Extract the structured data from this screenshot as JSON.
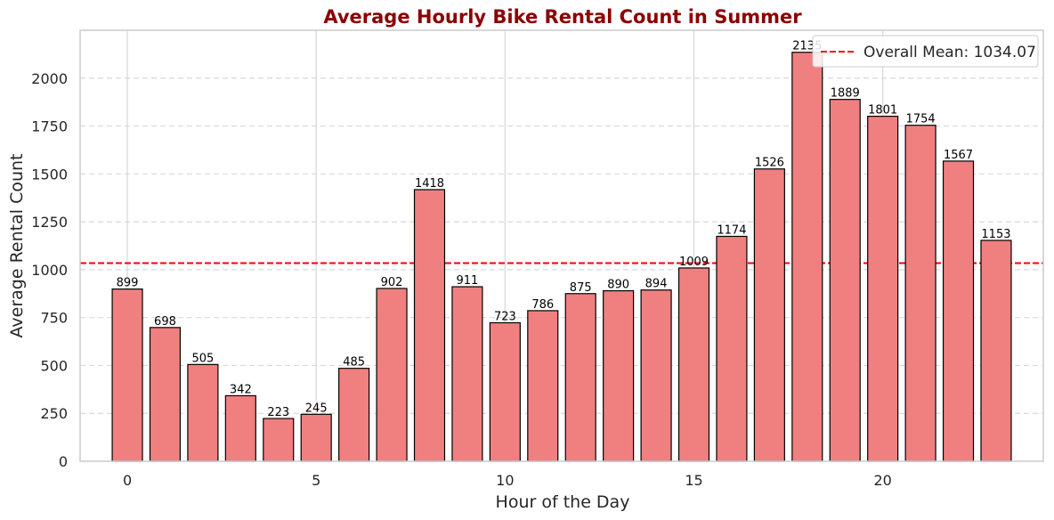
{
  "chart_data": {
    "type": "bar",
    "title": "Average Hourly Bike Rental Count in Summer",
    "xlabel": "Hour of the Day",
    "ylabel": "Average Rental Count",
    "categories": [
      0,
      1,
      2,
      3,
      4,
      5,
      6,
      7,
      8,
      9,
      10,
      11,
      12,
      13,
      14,
      15,
      16,
      17,
      18,
      19,
      20,
      21,
      22,
      23
    ],
    "values": [
      899,
      698,
      505,
      342,
      223,
      245,
      485,
      902,
      1418,
      911,
      723,
      786,
      875,
      890,
      894,
      1009,
      1174,
      1526,
      2135,
      1889,
      1801,
      1754,
      1567,
      1153
    ],
    "data_labels": [
      "899",
      "698",
      "505",
      "342",
      "223",
      "245",
      "485",
      "902",
      "1418",
      "911",
      "723",
      "786",
      "875",
      "890",
      "894",
      "1009",
      "1174",
      "1526",
      "2135",
      "1889",
      "1801",
      "1754",
      "1567",
      "1153"
    ],
    "xticks": [
      0,
      5,
      10,
      15,
      20
    ],
    "xtick_labels": [
      "0",
      "5",
      "10",
      "15",
      "20"
    ],
    "yticks": [
      0,
      250,
      500,
      750,
      1000,
      1250,
      1500,
      1750,
      2000
    ],
    "ytick_labels": [
      "0",
      "250",
      "500",
      "750",
      "1000",
      "1250",
      "1500",
      "1750",
      "2000"
    ],
    "xlim": [
      -1.25,
      24.25
    ],
    "ylim": [
      0,
      2250
    ],
    "grid": true,
    "mean_line": {
      "value": 1034.07,
      "label": "Overall Mean: 1034.07",
      "style": "dashed"
    },
    "legend": {
      "placement": "top-right",
      "entries": [
        "Overall Mean: 1034.07"
      ]
    },
    "colors": {
      "bar_fill": "#f08080",
      "bar_edge": "#000000",
      "mean_line": "#ff0000",
      "title": "#8b0000",
      "grid": "#d9d9d9",
      "axes_edge": "#cccccc"
    }
  }
}
